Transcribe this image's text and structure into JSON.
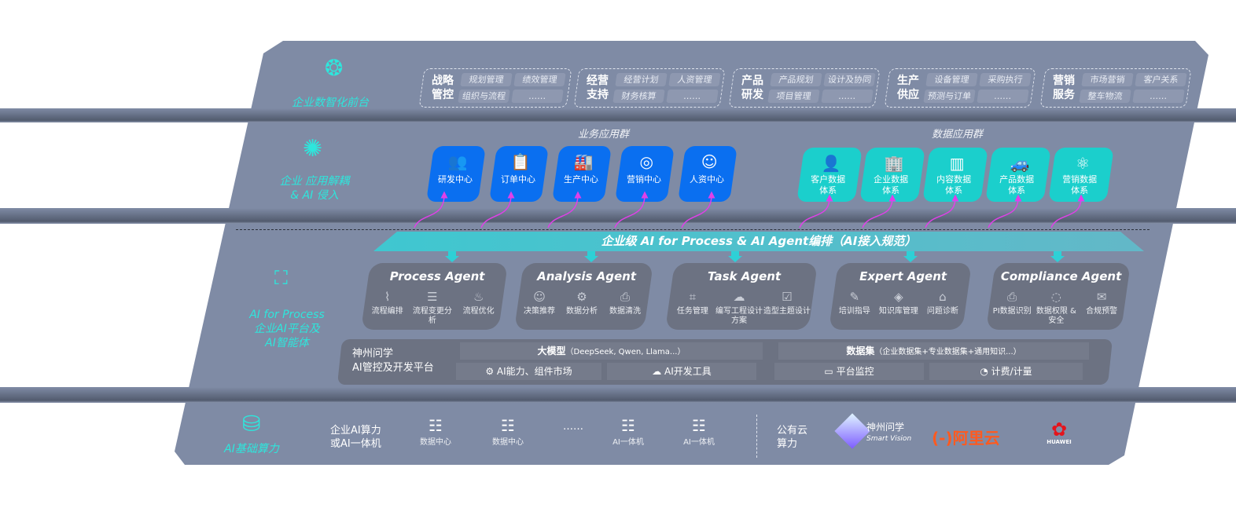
{
  "layer1": {
    "label": "企业数智化前台",
    "icon": "brain-icon",
    "groups": [
      {
        "title": "战略管控",
        "items": [
          "规划管理",
          "绩效管理",
          "组织与流程",
          "……"
        ]
      },
      {
        "title": "经营支持",
        "items": [
          "经营计划",
          "人资管理",
          "财务核算",
          "……"
        ]
      },
      {
        "title": "产品研发",
        "items": [
          "产品规划",
          "设计及协同",
          "项目管理",
          "……"
        ]
      },
      {
        "title": "生产供应",
        "items": [
          "设备管理",
          "采购执行",
          "预测与订单",
          "……"
        ]
      },
      {
        "title": "营销服务",
        "items": [
          "市场营销",
          "客户关系",
          "整车物流",
          "……"
        ]
      }
    ]
  },
  "layer2": {
    "label_line1": "企业 应用解耦",
    "label_line2": "& AI 侵入",
    "icon": "molecule-icon",
    "business_title": "业务应用群",
    "business": [
      {
        "label": "研发中心",
        "icon": "users-icon"
      },
      {
        "label": "订单中心",
        "icon": "clipboard-icon"
      },
      {
        "label": "生产中心",
        "icon": "factory-icon"
      },
      {
        "label": "营销中心",
        "icon": "target-icon"
      },
      {
        "label": "人资中心",
        "icon": "person-icon"
      }
    ],
    "data_title": "数据应用群",
    "data": [
      {
        "label1": "客户数据",
        "label2": "体系",
        "icon": "user-icon"
      },
      {
        "label1": "企业数据",
        "label2": "体系",
        "icon": "building-icon"
      },
      {
        "label1": "内容数据",
        "label2": "体系",
        "icon": "books-icon"
      },
      {
        "label1": "产品数据",
        "label2": "体系",
        "icon": "car-icon"
      },
      {
        "label1": "营销数据",
        "label2": "体系",
        "icon": "atom-icon"
      }
    ]
  },
  "banner": "企业级 AI for Process & AI Agent编排（AI接入规范）",
  "layer3": {
    "label_line1": "AI for Process",
    "label_line2": "企业AI平台及",
    "label_line3": "AI智能体",
    "icon": "face-scan-icon",
    "agents": [
      {
        "name": "Process Agent",
        "items": [
          "流程编排",
          "流程变更分析",
          "流程优化"
        ]
      },
      {
        "name": "Analysis Agent",
        "items": [
          "决策推荐",
          "数据分析",
          "数据清洗"
        ]
      },
      {
        "name": "Task Agent",
        "items": [
          "任务管理",
          "编写工程设计方案",
          "造型主题设计"
        ]
      },
      {
        "name": "Expert Agent",
        "items": [
          "培训指导",
          "知识库管理",
          "问题诊断"
        ]
      },
      {
        "name": "Compliance Agent",
        "items": [
          "PI数据识别",
          "数据权限 & 安全",
          "合规预警"
        ]
      }
    ],
    "platform": {
      "title_line1": "神州问学",
      "title_line2": "AI管控及开发平台",
      "model": "大模型",
      "model_note": "（DeepSeek, Qwen, Llama...）",
      "dataset": "数据集",
      "dataset_note": "（企业数据集+专业数据集+通用知识...）",
      "market": "AI能力、组件市场",
      "devtools": "AI开发工具",
      "monitor": "平台监控",
      "billing": "计费/计量"
    }
  },
  "layer4": {
    "label": "AI基础算力",
    "icon": "database-icon",
    "onprem_line1": "企业AI算力",
    "onprem_line2": "或AI一体机",
    "servers": [
      "数据中心",
      "数据中心",
      "……",
      "AI一体机",
      "AI一体机"
    ],
    "public_line1": "公有云",
    "public_line2": "算力",
    "logos": {
      "shenzhou": "神州问学",
      "shenzhou_sub": "Smart Vision",
      "aliyun": "阿里云",
      "huawei": "HUAWEI"
    }
  },
  "colors": {
    "panel": "#7f8ba5",
    "blue_tile": "#0a6ff0",
    "teal_tile": "#1bcfcc",
    "accent_text": "#2ee6dc",
    "arrow": "#e040e8",
    "aliyun": "#ff5a1f",
    "huawei": "#e4141c"
  }
}
